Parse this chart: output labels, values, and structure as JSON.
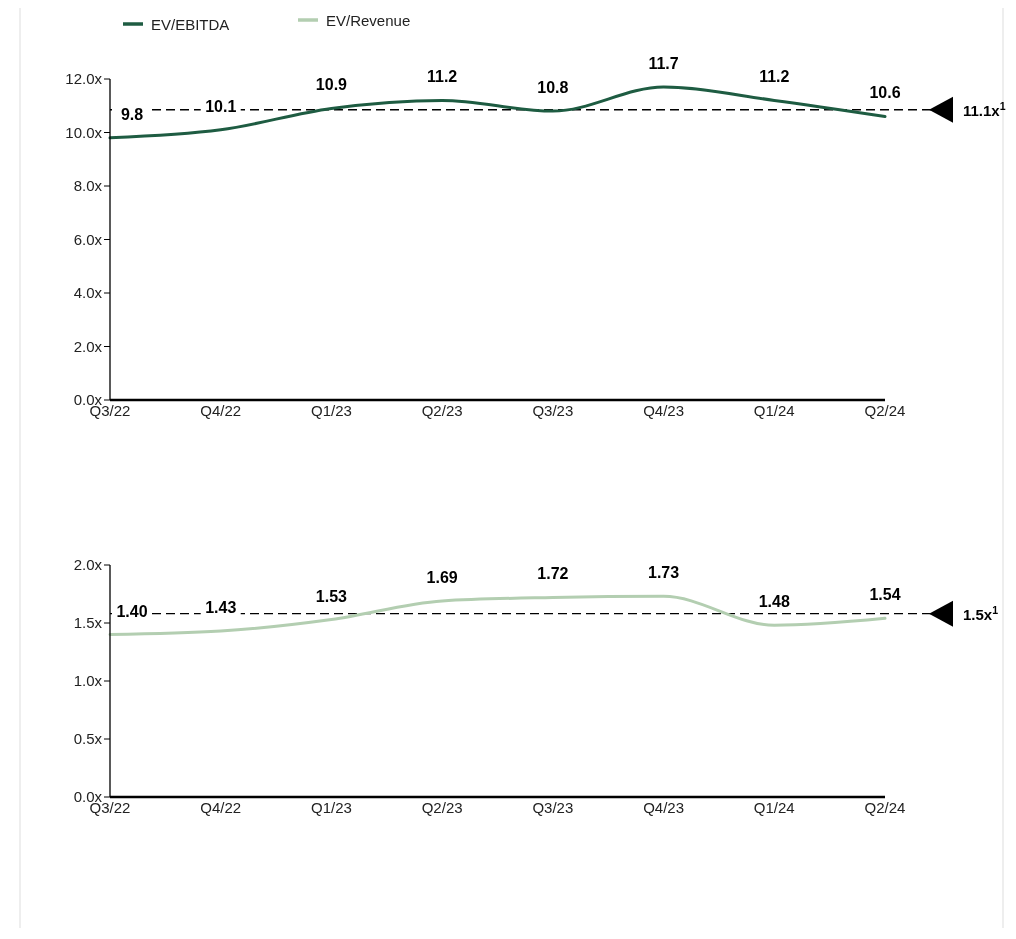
{
  "chart_data": [
    {
      "type": "line",
      "categories": [
        "Q3/22",
        "Q4/22",
        "Q1/23",
        "Q2/23",
        "Q3/23",
        "Q4/23",
        "Q1/24",
        "Q2/24"
      ],
      "series": [
        {
          "name": "EV/EBITDA",
          "color": "#1e5c42",
          "values": [
            9.8,
            10.1,
            10.9,
            11.2,
            10.8,
            11.7,
            11.2,
            10.6
          ],
          "value_labels": [
            "9.8",
            "10.1",
            "10.9",
            "11.2",
            "10.8",
            "11.7",
            "11.2",
            "10.6"
          ]
        }
      ],
      "ylim": [
        0,
        12
      ],
      "yticks": [
        {
          "value": 0,
          "label": "0.0x"
        },
        {
          "value": 2,
          "label": "2.0x"
        },
        {
          "value": 4,
          "label": "4.0x"
        },
        {
          "value": 6,
          "label": "6.0x"
        },
        {
          "value": 8,
          "label": "8.0x"
        },
        {
          "value": 10,
          "label": "10.0x"
        },
        {
          "value": 12,
          "label": "12.0x"
        }
      ],
      "ref_lines": [
        {
          "axis": "y",
          "value": 10.85,
          "label": "11.1x$^{1}$",
          "line_style": "dashed",
          "color": "#000000"
        }
      ],
      "legend": "top left",
      "grid": false
    },
    {
      "type": "line",
      "categories": [
        "Q3/22",
        "Q4/22",
        "Q1/23",
        "Q2/23",
        "Q3/23",
        "Q4/23",
        "Q1/24",
        "Q2/24"
      ],
      "series": [
        {
          "name": "EV/Revenue",
          "color": "#b3ceb1",
          "values": [
            1.4,
            1.43,
            1.53,
            1.69,
            1.72,
            1.73,
            1.48,
            1.54
          ],
          "value_labels": [
            "1.40",
            "1.43",
            "1.53",
            "1.69",
            "1.72",
            "1.73",
            "1.48",
            "1.54"
          ]
        }
      ],
      "ylim": [
        0,
        2
      ],
      "yticks": [
        {
          "value": 0,
          "label": "0.0x"
        },
        {
          "value": 0.5,
          "label": "0.5x"
        },
        {
          "value": 1,
          "label": "1.0x"
        },
        {
          "value": 1.5,
          "label": "1.5x"
        },
        {
          "value": 2,
          "label": "2.0x"
        }
      ],
      "ref_lines": [
        {
          "axis": "y",
          "value": 1.58,
          "label": "1.5x$^{1}$",
          "line_style": "dashed",
          "color": "#000000"
        }
      ],
      "legend": "top left",
      "grid": false
    }
  ]
}
